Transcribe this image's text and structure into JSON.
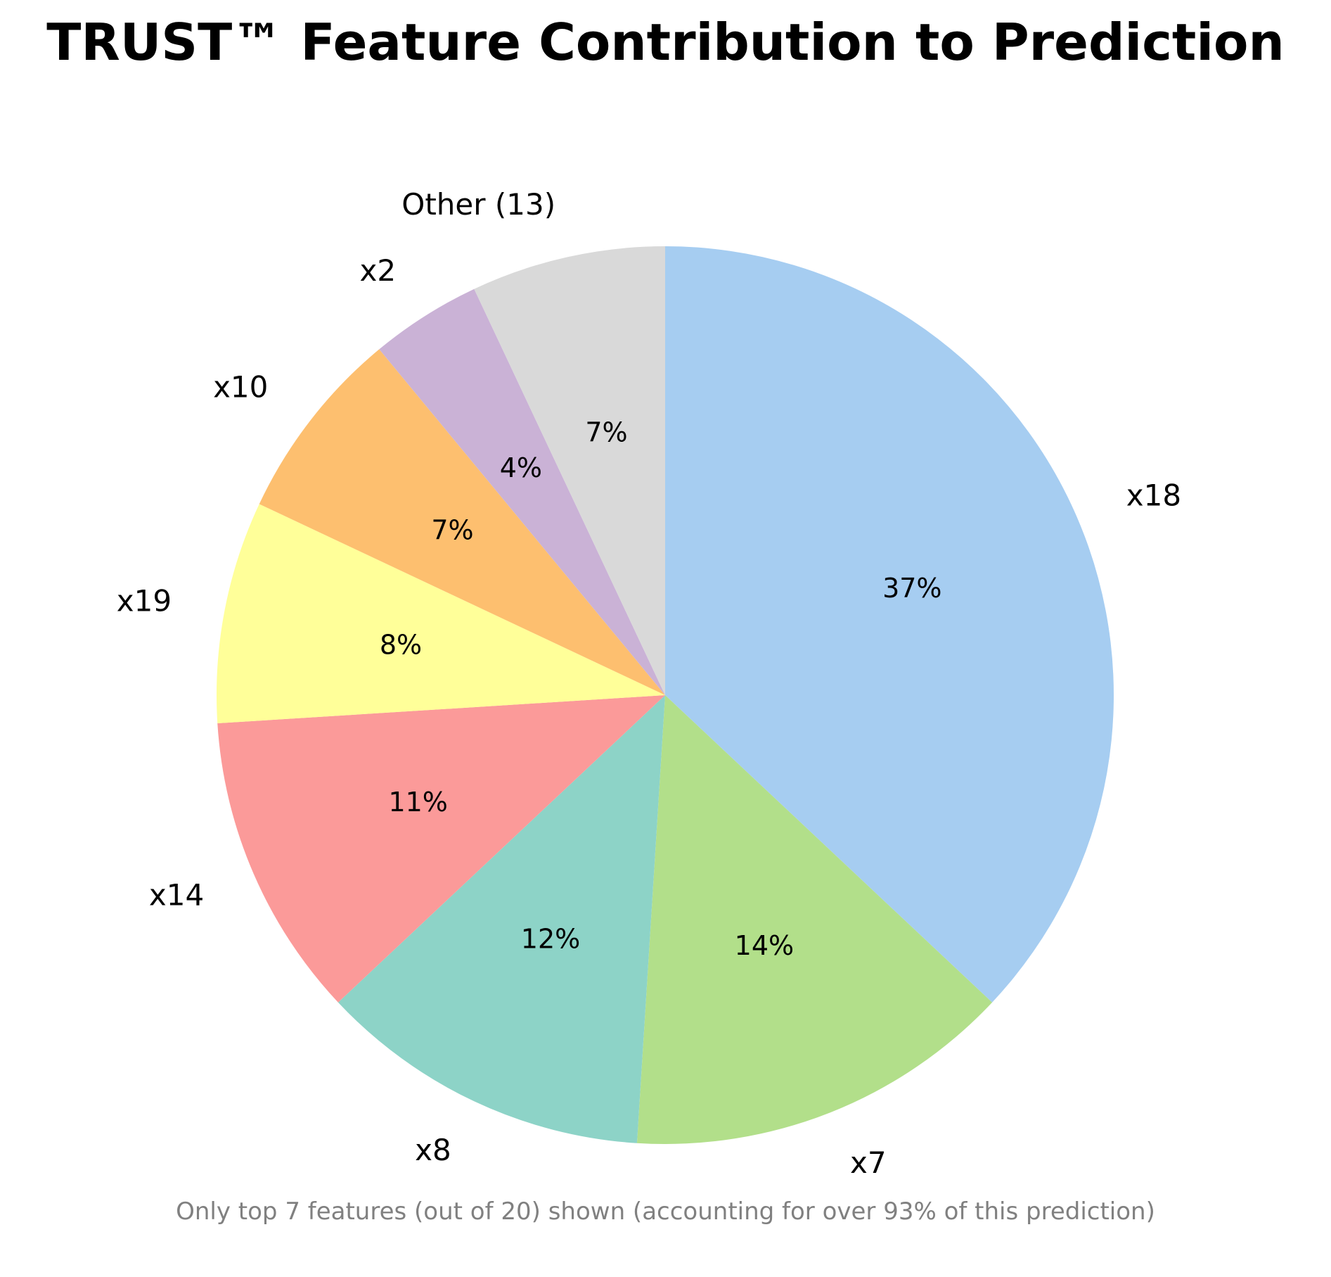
{
  "chart_data": {
    "type": "pie",
    "title": "TRUST™ Feature Contribution to Prediction",
    "footnote": "Only top 7 features (out of 20) shown (accounting for over 93% of this prediction)",
    "start_angle_deg": 90,
    "direction": "clockwise",
    "slices": [
      {
        "label": "x18",
        "value": 37,
        "pct_label": "37%",
        "color": "#a6cdf1"
      },
      {
        "label": "x7",
        "value": 14,
        "pct_label": "14%",
        "color": "#b2df8a"
      },
      {
        "label": "x8",
        "value": 12,
        "pct_label": "12%",
        "color": "#8dd3c7"
      },
      {
        "label": "x14",
        "value": 11,
        "pct_label": "11%",
        "color": "#fb9a99"
      },
      {
        "label": "x19",
        "value": 8,
        "pct_label": "8%",
        "color": "#ffff99"
      },
      {
        "label": "x10",
        "value": 7,
        "pct_label": "7%",
        "color": "#fdbf6f"
      },
      {
        "label": "x2",
        "value": 4,
        "pct_label": "4%",
        "color": "#cab2d6"
      },
      {
        "label": "Other (13)",
        "value": 7,
        "pct_label": "7%",
        "color": "#d9d9d9"
      }
    ]
  }
}
